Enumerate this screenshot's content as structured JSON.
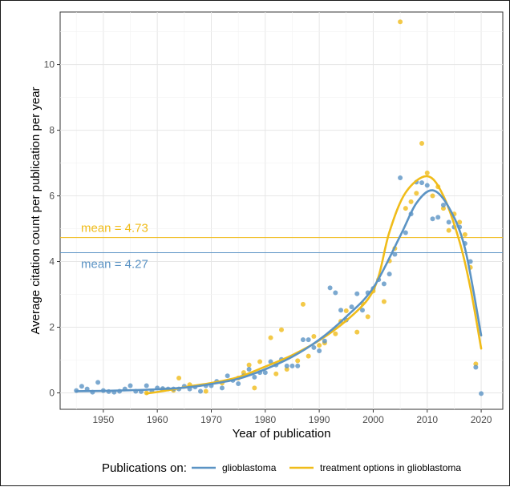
{
  "chart_data": {
    "type": "scatter",
    "title": "",
    "xlabel": "Year of publication",
    "ylabel": "Average citation count per publication per year",
    "xlim": [
      1942,
      2024
    ],
    "ylim": [
      -0.5,
      11.6
    ],
    "xticks": [
      1950,
      1960,
      1970,
      1980,
      1990,
      2000,
      2010,
      2020
    ],
    "yticks": [
      0,
      2,
      4,
      6,
      8,
      10
    ],
    "grid": true,
    "legend": {
      "position": "bottom",
      "title": "Publications on:",
      "items": [
        "glioblastoma",
        "treatment options in glioblastoma"
      ]
    },
    "series": [
      {
        "name": "glioblastoma",
        "color": "#5b93c4",
        "mean": 4.27,
        "mean_label": "mean = 4.27",
        "points": [
          [
            1945,
            0.07
          ],
          [
            1946,
            0.2
          ],
          [
            1947,
            0.12
          ],
          [
            1948,
            0.02
          ],
          [
            1949,
            0.32
          ],
          [
            1950,
            0.07
          ],
          [
            1951,
            0.04
          ],
          [
            1952,
            0.02
          ],
          [
            1953,
            0.05
          ],
          [
            1954,
            0.12
          ],
          [
            1955,
            0.22
          ],
          [
            1956,
            0.05
          ],
          [
            1957,
            0.04
          ],
          [
            1958,
            0.22
          ],
          [
            1959,
            0.05
          ],
          [
            1960,
            0.15
          ],
          [
            1961,
            0.13
          ],
          [
            1962,
            0.12
          ],
          [
            1963,
            0.12
          ],
          [
            1964,
            0.12
          ],
          [
            1965,
            0.2
          ],
          [
            1966,
            0.12
          ],
          [
            1967,
            0.18
          ],
          [
            1968,
            0.05
          ],
          [
            1969,
            0.22
          ],
          [
            1970,
            0.22
          ],
          [
            1971,
            0.35
          ],
          [
            1972,
            0.15
          ],
          [
            1973,
            0.52
          ],
          [
            1974,
            0.38
          ],
          [
            1975,
            0.28
          ],
          [
            1976,
            0.52
          ],
          [
            1977,
            0.72
          ],
          [
            1978,
            0.48
          ],
          [
            1979,
            0.62
          ],
          [
            1980,
            0.62
          ],
          [
            1981,
            0.95
          ],
          [
            1982,
            0.85
          ],
          [
            1983,
            1.02
          ],
          [
            1984,
            0.82
          ],
          [
            1985,
            0.82
          ],
          [
            1986,
            0.82
          ],
          [
            1987,
            1.62
          ],
          [
            1988,
            1.62
          ],
          [
            1989,
            1.38
          ],
          [
            1990,
            1.28
          ],
          [
            1991,
            1.58
          ],
          [
            1992,
            3.2
          ],
          [
            1993,
            3.05
          ],
          [
            1994,
            2.52
          ],
          [
            1995,
            2.22
          ],
          [
            1996,
            2.62
          ],
          [
            1997,
            3.02
          ],
          [
            1998,
            2.52
          ],
          [
            1999,
            3.05
          ],
          [
            2000,
            3.18
          ],
          [
            2001,
            3.45
          ],
          [
            2002,
            3.32
          ],
          [
            2003,
            3.62
          ],
          [
            2004,
            4.22
          ],
          [
            2005,
            6.55
          ],
          [
            2006,
            4.88
          ],
          [
            2007,
            5.45
          ],
          [
            2008,
            6.42
          ],
          [
            2009,
            6.4
          ],
          [
            2010,
            6.32
          ],
          [
            2011,
            5.3
          ],
          [
            2012,
            5.35
          ],
          [
            2013,
            5.72
          ],
          [
            2014,
            5.2
          ],
          [
            2015,
            5.05
          ],
          [
            2016,
            5.05
          ],
          [
            2017,
            4.55
          ],
          [
            2018,
            4.0
          ],
          [
            2019,
            0.78
          ],
          [
            2020,
            -0.02
          ]
        ],
        "curve": [
          [
            1945,
            0.05
          ],
          [
            1950,
            0.06
          ],
          [
            1955,
            0.08
          ],
          [
            1960,
            0.11
          ],
          [
            1965,
            0.16
          ],
          [
            1970,
            0.27
          ],
          [
            1975,
            0.43
          ],
          [
            1980,
            0.72
          ],
          [
            1985,
            1.1
          ],
          [
            1990,
            1.62
          ],
          [
            1995,
            2.32
          ],
          [
            2000,
            3.2
          ],
          [
            2005,
            4.78
          ],
          [
            2008,
            5.78
          ],
          [
            2011,
            6.17
          ],
          [
            2014,
            5.65
          ],
          [
            2017,
            4.4
          ],
          [
            2020,
            1.75
          ]
        ]
      },
      {
        "name": "treatment options in glioblastoma",
        "color": "#f0bc1a",
        "mean": 4.73,
        "mean_label": "mean = 4.73",
        "points": [
          [
            1958,
            0.0
          ],
          [
            1961,
            0.1
          ],
          [
            1963,
            0.08
          ],
          [
            1964,
            0.45
          ],
          [
            1966,
            0.25
          ],
          [
            1969,
            0.05
          ],
          [
            1972,
            0.3
          ],
          [
            1975,
            0.45
          ],
          [
            1976,
            0.62
          ],
          [
            1977,
            0.85
          ],
          [
            1978,
            0.15
          ],
          [
            1979,
            0.95
          ],
          [
            1981,
            1.68
          ],
          [
            1982,
            0.58
          ],
          [
            1983,
            1.92
          ],
          [
            1984,
            0.72
          ],
          [
            1986,
            0.98
          ],
          [
            1987,
            2.7
          ],
          [
            1988,
            1.12
          ],
          [
            1989,
            1.72
          ],
          [
            1990,
            1.45
          ],
          [
            1991,
            1.52
          ],
          [
            1993,
            1.8
          ],
          [
            1994,
            2.18
          ],
          [
            1995,
            2.5
          ],
          [
            1997,
            1.85
          ],
          [
            1998,
            2.72
          ],
          [
            1999,
            2.32
          ],
          [
            2000,
            3.1
          ],
          [
            2002,
            2.78
          ],
          [
            2003,
            4.02
          ],
          [
            2004,
            4.4
          ],
          [
            2005,
            11.3
          ],
          [
            2006,
            5.62
          ],
          [
            2007,
            5.82
          ],
          [
            2008,
            6.08
          ],
          [
            2009,
            7.6
          ],
          [
            2010,
            6.7
          ],
          [
            2011,
            6.0
          ],
          [
            2012,
            6.28
          ],
          [
            2013,
            5.62
          ],
          [
            2014,
            4.95
          ],
          [
            2015,
            5.45
          ],
          [
            2016,
            5.2
          ],
          [
            2017,
            4.82
          ],
          [
            2018,
            3.82
          ],
          [
            2019,
            0.88
          ]
        ],
        "curve": [
          [
            1958,
            -0.02
          ],
          [
            1962,
            0.08
          ],
          [
            1966,
            0.2
          ],
          [
            1970,
            0.3
          ],
          [
            1975,
            0.48
          ],
          [
            1980,
            0.8
          ],
          [
            1985,
            1.15
          ],
          [
            1990,
            1.6
          ],
          [
            1995,
            2.2
          ],
          [
            1999,
            2.85
          ],
          [
            2001,
            3.55
          ],
          [
            2003,
            4.9
          ],
          [
            2006,
            6.1
          ],
          [
            2010,
            6.6
          ],
          [
            2013,
            6.0
          ],
          [
            2016,
            4.6
          ],
          [
            2018,
            3.2
          ],
          [
            2020,
            1.35
          ]
        ]
      }
    ]
  }
}
